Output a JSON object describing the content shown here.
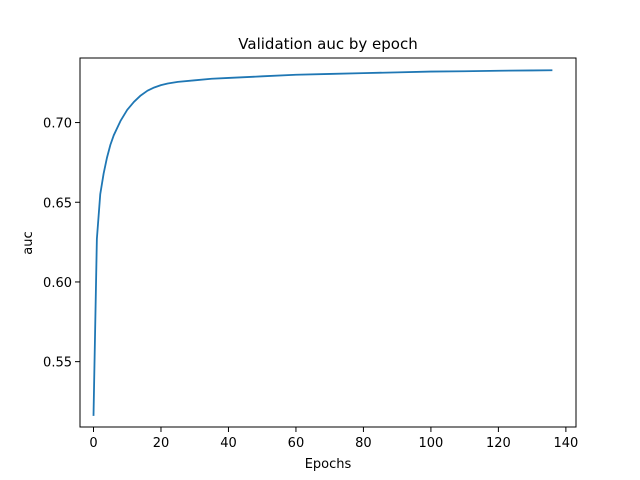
{
  "chart_data": {
    "type": "line",
    "title": "Validation auc by epoch",
    "xlabel": "Epochs",
    "ylabel": "auc",
    "xlim": [
      -4,
      143
    ],
    "ylim": [
      0.509,
      0.7405
    ],
    "xticks": [
      0,
      20,
      40,
      60,
      80,
      100,
      120,
      140
    ],
    "xtick_labels": [
      "0",
      "20",
      "40",
      "60",
      "80",
      "100",
      "120",
      "140"
    ],
    "yticks": [
      0.55,
      0.6,
      0.65,
      0.7
    ],
    "ytick_labels": [
      "0.55",
      "0.60",
      "0.65",
      "0.70"
    ],
    "grid": false,
    "series": [
      {
        "color": "#1f77b4",
        "x": [
          0,
          1,
          2,
          3,
          4,
          5,
          6,
          8,
          10,
          12,
          14,
          16,
          18,
          20,
          22,
          25,
          30,
          35,
          40,
          50,
          60,
          70,
          80,
          90,
          100,
          110,
          120,
          130,
          136
        ],
        "y": [
          0.516,
          0.627,
          0.655,
          0.668,
          0.678,
          0.686,
          0.692,
          0.701,
          0.708,
          0.713,
          0.717,
          0.72,
          0.722,
          0.7235,
          0.7245,
          0.7255,
          0.7265,
          0.7275,
          0.728,
          0.729,
          0.73,
          0.7305,
          0.731,
          0.7315,
          0.732,
          0.7322,
          0.7325,
          0.7327,
          0.7328
        ]
      }
    ]
  }
}
